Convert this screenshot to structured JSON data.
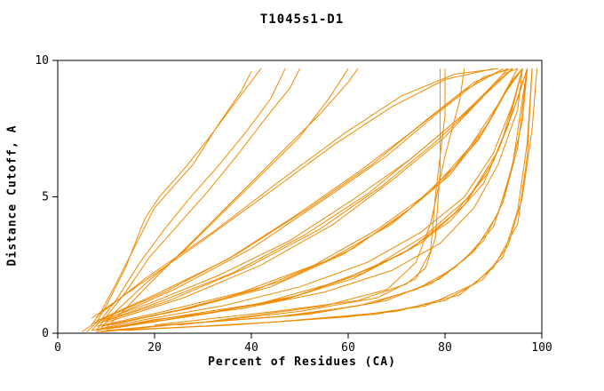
{
  "chart_data": {
    "type": "line",
    "title": "T1045s1-D1",
    "xlabel": "Percent of Residues (CA)",
    "ylabel": "Distance Cutoff, A",
    "xlim": [
      0,
      100
    ],
    "ylim": [
      0,
      10
    ],
    "xticks": [
      0,
      20,
      40,
      60,
      80,
      100
    ],
    "yticks": [
      0,
      5,
      10
    ],
    "grid": false,
    "legend": "none",
    "line_color": "#ef8a00",
    "axis_color": "#000000",
    "series": [
      {
        "points": [
          [
            5,
            0.05
          ],
          [
            7,
            0.3
          ],
          [
            9,
            0.8
          ],
          [
            12,
            1.8
          ],
          [
            16,
            3.2
          ],
          [
            20,
            4.6
          ],
          [
            24,
            5.4
          ],
          [
            28,
            6.2
          ],
          [
            33,
            7.6
          ],
          [
            38,
            8.9
          ],
          [
            40,
            9.6
          ]
        ]
      },
      {
        "points": [
          [
            6,
            0.05
          ],
          [
            8,
            0.4
          ],
          [
            10,
            1.0
          ],
          [
            14,
            2.4
          ],
          [
            18,
            4.2
          ],
          [
            21,
            5.0
          ],
          [
            26,
            6.0
          ],
          [
            31,
            7.1
          ],
          [
            36,
            8.3
          ],
          [
            42,
            9.7
          ]
        ]
      },
      {
        "points": [
          [
            7,
            0.1
          ],
          [
            9,
            0.5
          ],
          [
            12,
            1.2
          ],
          [
            17,
            2.6
          ],
          [
            22,
            3.8
          ],
          [
            27,
            4.9
          ],
          [
            33,
            6.1
          ],
          [
            39,
            7.4
          ],
          [
            44,
            8.6
          ],
          [
            47,
            9.7
          ]
        ]
      },
      {
        "points": [
          [
            8,
            0.1
          ],
          [
            10,
            0.6
          ],
          [
            14,
            1.5
          ],
          [
            19,
            2.8
          ],
          [
            25,
            4.0
          ],
          [
            31,
            5.2
          ],
          [
            37,
            6.5
          ],
          [
            43,
            7.9
          ],
          [
            48,
            9.0
          ],
          [
            50,
            9.7
          ]
        ]
      },
      {
        "points": [
          [
            9,
            0.2
          ],
          [
            12,
            0.8
          ],
          [
            18,
            1.8
          ],
          [
            26,
            3.0
          ],
          [
            34,
            4.4
          ],
          [
            42,
            5.8
          ],
          [
            50,
            7.2
          ],
          [
            56,
            8.6
          ],
          [
            60,
            9.7
          ]
        ]
      },
      {
        "points": [
          [
            10,
            0.2
          ],
          [
            14,
            0.9
          ],
          [
            20,
            2.0
          ],
          [
            28,
            3.4
          ],
          [
            37,
            5.0
          ],
          [
            46,
            6.6
          ],
          [
            54,
            8.0
          ],
          [
            60,
            9.2
          ],
          [
            62,
            9.7
          ]
        ]
      },
      {
        "points": [
          [
            20,
            0.3
          ],
          [
            45,
            0.8
          ],
          [
            62,
            1.2
          ],
          [
            72,
            1.8
          ],
          [
            76,
            2.4
          ],
          [
            78,
            3.5
          ],
          [
            79,
            6.0
          ],
          [
            79,
            9.7
          ]
        ]
      },
      {
        "points": [
          [
            25,
            0.3
          ],
          [
            50,
            0.8
          ],
          [
            66,
            1.3
          ],
          [
            74,
            2.0
          ],
          [
            77,
            3.0
          ],
          [
            78,
            5.0
          ],
          [
            80,
            8.0
          ],
          [
            80,
            9.7
          ]
        ]
      },
      {
        "points": [
          [
            30,
            0.4
          ],
          [
            55,
            1.0
          ],
          [
            68,
            1.6
          ],
          [
            74,
            2.6
          ],
          [
            77,
            4.0
          ],
          [
            80,
            6.5
          ],
          [
            83,
            8.5
          ],
          [
            84,
            9.7
          ]
        ]
      },
      {
        "points": [
          [
            8,
            0.05
          ],
          [
            22,
            0.3
          ],
          [
            45,
            0.6
          ],
          [
            62,
            1.0
          ],
          [
            74,
            1.6
          ],
          [
            82,
            2.4
          ],
          [
            88,
            3.4
          ],
          [
            92,
            4.8
          ],
          [
            95,
            6.8
          ],
          [
            97,
            9.7
          ]
        ]
      },
      {
        "points": [
          [
            9,
            0.05
          ],
          [
            26,
            0.35
          ],
          [
            49,
            0.65
          ],
          [
            65,
            1.1
          ],
          [
            77,
            1.8
          ],
          [
            84,
            2.7
          ],
          [
            90,
            3.9
          ],
          [
            93,
            5.5
          ],
          [
            96,
            7.8
          ],
          [
            97,
            9.7
          ]
        ]
      },
      {
        "points": [
          [
            10,
            0.1
          ],
          [
            30,
            0.4
          ],
          [
            52,
            0.7
          ],
          [
            68,
            1.2
          ],
          [
            79,
            2.0
          ],
          [
            86,
            3.0
          ],
          [
            91,
            4.4
          ],
          [
            94,
            6.2
          ],
          [
            96,
            8.6
          ],
          [
            97,
            9.7
          ]
        ]
      },
      {
        "points": [
          [
            8,
            0.1
          ],
          [
            20,
            0.5
          ],
          [
            38,
            0.9
          ],
          [
            55,
            1.5
          ],
          [
            69,
            2.3
          ],
          [
            79,
            3.3
          ],
          [
            86,
            4.6
          ],
          [
            91,
            6.2
          ],
          [
            95,
            8.2
          ],
          [
            96,
            9.7
          ]
        ]
      },
      {
        "points": [
          [
            7,
            0.1
          ],
          [
            18,
            0.5
          ],
          [
            34,
            1.0
          ],
          [
            50,
            1.7
          ],
          [
            64,
            2.6
          ],
          [
            75,
            3.7
          ],
          [
            84,
            5.0
          ],
          [
            90,
            6.6
          ],
          [
            94,
            8.4
          ],
          [
            96,
            9.7
          ]
        ]
      },
      {
        "points": [
          [
            9,
            0.15
          ],
          [
            24,
            0.6
          ],
          [
            42,
            1.1
          ],
          [
            58,
            1.9
          ],
          [
            71,
            2.9
          ],
          [
            81,
            4.1
          ],
          [
            88,
            5.5
          ],
          [
            92,
            7.2
          ],
          [
            95,
            9.0
          ],
          [
            96,
            9.7
          ]
        ]
      },
      {
        "points": [
          [
            10,
            0.15
          ],
          [
            28,
            0.65
          ],
          [
            46,
            1.2
          ],
          [
            61,
            2.0
          ],
          [
            73,
            3.1
          ],
          [
            82,
            4.4
          ],
          [
            89,
            5.9
          ],
          [
            93,
            7.6
          ],
          [
            96,
            9.7
          ]
        ]
      },
      {
        "points": [
          [
            11,
            0.2
          ],
          [
            30,
            0.7
          ],
          [
            48,
            1.3
          ],
          [
            63,
            2.2
          ],
          [
            75,
            3.3
          ],
          [
            84,
            4.7
          ],
          [
            90,
            6.3
          ],
          [
            94,
            8.1
          ],
          [
            97,
            9.7
          ]
        ]
      },
      {
        "points": [
          [
            12,
            0.2
          ],
          [
            32,
            0.75
          ],
          [
            50,
            1.4
          ],
          [
            65,
            2.4
          ],
          [
            76,
            3.6
          ],
          [
            85,
            5.0
          ],
          [
            91,
            6.7
          ],
          [
            95,
            8.6
          ],
          [
            97,
            9.7
          ]
        ]
      },
      {
        "points": [
          [
            8,
            0.25
          ],
          [
            22,
            0.8
          ],
          [
            38,
            1.5
          ],
          [
            53,
            2.5
          ],
          [
            66,
            3.8
          ],
          [
            77,
            5.2
          ],
          [
            85,
            6.8
          ],
          [
            91,
            8.4
          ],
          [
            95,
            9.7
          ]
        ]
      },
      {
        "points": [
          [
            9,
            0.25
          ],
          [
            25,
            0.85
          ],
          [
            41,
            1.6
          ],
          [
            56,
            2.7
          ],
          [
            69,
            4.0
          ],
          [
            79,
            5.5
          ],
          [
            87,
            7.1
          ],
          [
            92,
            8.7
          ],
          [
            96,
            9.7
          ]
        ]
      },
      {
        "points": [
          [
            10,
            0.3
          ],
          [
            27,
            0.9
          ],
          [
            44,
            1.7
          ],
          [
            59,
            2.9
          ],
          [
            71,
            4.3
          ],
          [
            81,
            5.8
          ],
          [
            88,
            7.4
          ],
          [
            93,
            9.0
          ],
          [
            96,
            9.7
          ]
        ]
      },
      {
        "points": [
          [
            11,
            0.3
          ],
          [
            29,
            1.0
          ],
          [
            46,
            1.9
          ],
          [
            61,
            3.1
          ],
          [
            73,
            4.6
          ],
          [
            82,
            6.1
          ],
          [
            89,
            7.7
          ],
          [
            94,
            9.3
          ],
          [
            96,
            9.7
          ]
        ]
      },
      {
        "points": [
          [
            7,
            0.35
          ],
          [
            19,
            1.1
          ],
          [
            33,
            2.1
          ],
          [
            48,
            3.4
          ],
          [
            61,
            4.9
          ],
          [
            73,
            6.4
          ],
          [
            83,
            7.9
          ],
          [
            90,
            9.1
          ],
          [
            94,
            9.7
          ]
        ]
      },
      {
        "points": [
          [
            8,
            0.35
          ],
          [
            21,
            1.15
          ],
          [
            36,
            2.2
          ],
          [
            51,
            3.6
          ],
          [
            64,
            5.1
          ],
          [
            75,
            6.7
          ],
          [
            85,
            8.2
          ],
          [
            92,
            9.5
          ],
          [
            95,
            9.7
          ]
        ]
      },
      {
        "points": [
          [
            9,
            0.4
          ],
          [
            23,
            1.2
          ],
          [
            39,
            2.4
          ],
          [
            54,
            3.8
          ],
          [
            67,
            5.4
          ],
          [
            78,
            7.0
          ],
          [
            87,
            8.5
          ],
          [
            93,
            9.7
          ]
        ]
      },
      {
        "points": [
          [
            10,
            0.4
          ],
          [
            26,
            1.3
          ],
          [
            42,
            2.5
          ],
          [
            57,
            4.0
          ],
          [
            69,
            5.6
          ],
          [
            80,
            7.2
          ],
          [
            88,
            8.7
          ],
          [
            94,
            9.7
          ]
        ]
      },
      {
        "points": [
          [
            8,
            0.45
          ],
          [
            20,
            1.4
          ],
          [
            35,
            2.7
          ],
          [
            49,
            4.3
          ],
          [
            62,
            5.9
          ],
          [
            74,
            7.5
          ],
          [
            84,
            8.9
          ],
          [
            92,
            9.7
          ]
        ]
      },
      {
        "points": [
          [
            9,
            0.5
          ],
          [
            22,
            1.5
          ],
          [
            37,
            2.9
          ],
          [
            52,
            4.6
          ],
          [
            65,
            6.2
          ],
          [
            76,
            7.8
          ],
          [
            86,
            9.2
          ],
          [
            93,
            9.7
          ]
        ]
      },
      {
        "points": [
          [
            10,
            0.5
          ],
          [
            24,
            1.6
          ],
          [
            40,
            3.1
          ],
          [
            55,
            4.9
          ],
          [
            68,
            6.5
          ],
          [
            78,
            8.0
          ],
          [
            88,
            9.4
          ],
          [
            94,
            9.7
          ]
        ]
      },
      {
        "points": [
          [
            7,
            0.55
          ],
          [
            17,
            1.8
          ],
          [
            30,
            3.4
          ],
          [
            44,
            5.2
          ],
          [
            57,
            6.9
          ],
          [
            69,
            8.3
          ],
          [
            80,
            9.3
          ],
          [
            90,
            9.7
          ]
        ]
      },
      {
        "points": [
          [
            8,
            0.6
          ],
          [
            18,
            2.0
          ],
          [
            32,
            3.7
          ],
          [
            46,
            5.6
          ],
          [
            59,
            7.3
          ],
          [
            71,
            8.7
          ],
          [
            82,
            9.5
          ],
          [
            91,
            9.7
          ]
        ]
      },
      {
        "points": [
          [
            12,
            0.1
          ],
          [
            40,
            0.35
          ],
          [
            66,
            0.7
          ],
          [
            80,
            1.2
          ],
          [
            88,
            2.0
          ],
          [
            93,
            3.2
          ],
          [
            96,
            5.0
          ],
          [
            98,
            7.5
          ],
          [
            99,
            9.7
          ]
        ]
      },
      {
        "points": [
          [
            14,
            0.1
          ],
          [
            44,
            0.4
          ],
          [
            70,
            0.8
          ],
          [
            83,
            1.4
          ],
          [
            90,
            2.4
          ],
          [
            95,
            4.0
          ],
          [
            97,
            6.5
          ],
          [
            98,
            9.7
          ]
        ]
      },
      {
        "points": [
          [
            11,
            0.1
          ],
          [
            36,
            0.3
          ],
          [
            60,
            0.6
          ],
          [
            76,
            1.0
          ],
          [
            86,
            1.8
          ],
          [
            92,
            2.8
          ],
          [
            95,
            4.5
          ],
          [
            97,
            7.0
          ],
          [
            98,
            9.7
          ]
        ]
      }
    ]
  }
}
